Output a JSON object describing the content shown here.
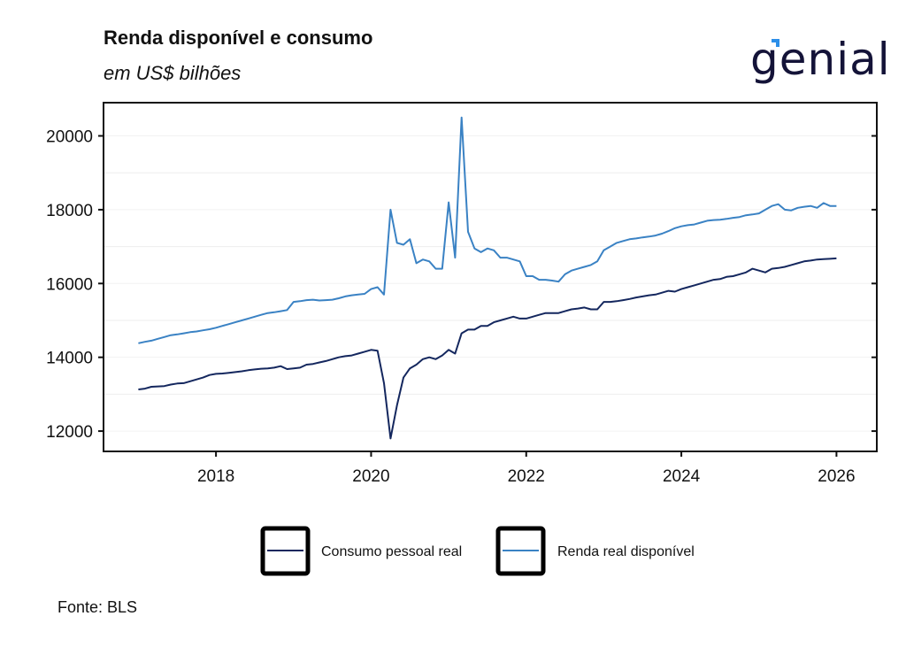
{
  "logo": {
    "text": "genial",
    "accent_color": "#2d8fe8"
  },
  "source": "Fonte: BLS",
  "chart_data": {
    "type": "line",
    "title": "Renda disponível e consumo",
    "subtitle": "em US$ bilhões",
    "xlabel": "",
    "ylabel": "",
    "x_start": "2017-01",
    "x_frequency": "monthly",
    "xlim": [
      2016.55,
      2026.52
    ],
    "ylim": [
      11450,
      20900
    ],
    "x_ticks": [
      "2018",
      "2020",
      "2022",
      "2024",
      "2026"
    ],
    "y_ticks": [
      "12000",
      "14000",
      "16000",
      "18000",
      "20000"
    ],
    "grid": true,
    "legend_position": "bottom",
    "series": [
      {
        "name": "Consumo pessoal real",
        "color": "#14275e",
        "values": [
          13130,
          13150,
          13200,
          13210,
          13220,
          13260,
          13290,
          13300,
          13350,
          13400,
          13450,
          13520,
          13550,
          13560,
          13580,
          13600,
          13620,
          13650,
          13670,
          13690,
          13700,
          13720,
          13760,
          13680,
          13700,
          13720,
          13800,
          13820,
          13860,
          13900,
          13950,
          14000,
          14030,
          14050,
          14100,
          14150,
          14200,
          14180,
          13300,
          11800,
          12700,
          13450,
          13700,
          13800,
          13950,
          14000,
          13950,
          14050,
          14200,
          14100,
          14650,
          14750,
          14750,
          14850,
          14850,
          14950,
          15000,
          15050,
          15100,
          15050,
          15050,
          15100,
          15150,
          15200,
          15200,
          15200,
          15250,
          15300,
          15320,
          15350,
          15300,
          15300,
          15500,
          15500,
          15520,
          15550,
          15580,
          15620,
          15650,
          15680,
          15700,
          15750,
          15800,
          15780,
          15850,
          15900,
          15950,
          16000,
          16050,
          16100,
          16120,
          16180,
          16200,
          16250,
          16300,
          16400,
          16350,
          16300,
          16400,
          16420,
          16450,
          16500,
          16550,
          16600,
          16620,
          16650,
          16660,
          16670,
          16680
        ]
      },
      {
        "name": "Renda real disponível",
        "color": "#3a82c4",
        "values": [
          14380,
          14420,
          14450,
          14500,
          14550,
          14600,
          14620,
          14650,
          14680,
          14700,
          14730,
          14760,
          14800,
          14850,
          14900,
          14950,
          15000,
          15050,
          15100,
          15150,
          15200,
          15220,
          15250,
          15280,
          15500,
          15520,
          15550,
          15560,
          15540,
          15550,
          15560,
          15600,
          15650,
          15680,
          15700,
          15720,
          15850,
          15900,
          15700,
          18000,
          17100,
          17050,
          17200,
          16550,
          16650,
          16600,
          16400,
          16400,
          18200,
          16700,
          20500,
          17400,
          16950,
          16850,
          16950,
          16900,
          16700,
          16700,
          16650,
          16600,
          16200,
          16200,
          16100,
          16100,
          16080,
          16050,
          16250,
          16350,
          16400,
          16450,
          16500,
          16600,
          16900,
          17000,
          17100,
          17150,
          17200,
          17220,
          17250,
          17270,
          17300,
          17350,
          17420,
          17500,
          17550,
          17580,
          17600,
          17650,
          17700,
          17720,
          17730,
          17750,
          17780,
          17800,
          17850,
          17870,
          17900,
          18000,
          18100,
          18150,
          18000,
          17980,
          18050,
          18080,
          18100,
          18050,
          18180,
          18100,
          18100
        ]
      }
    ]
  }
}
